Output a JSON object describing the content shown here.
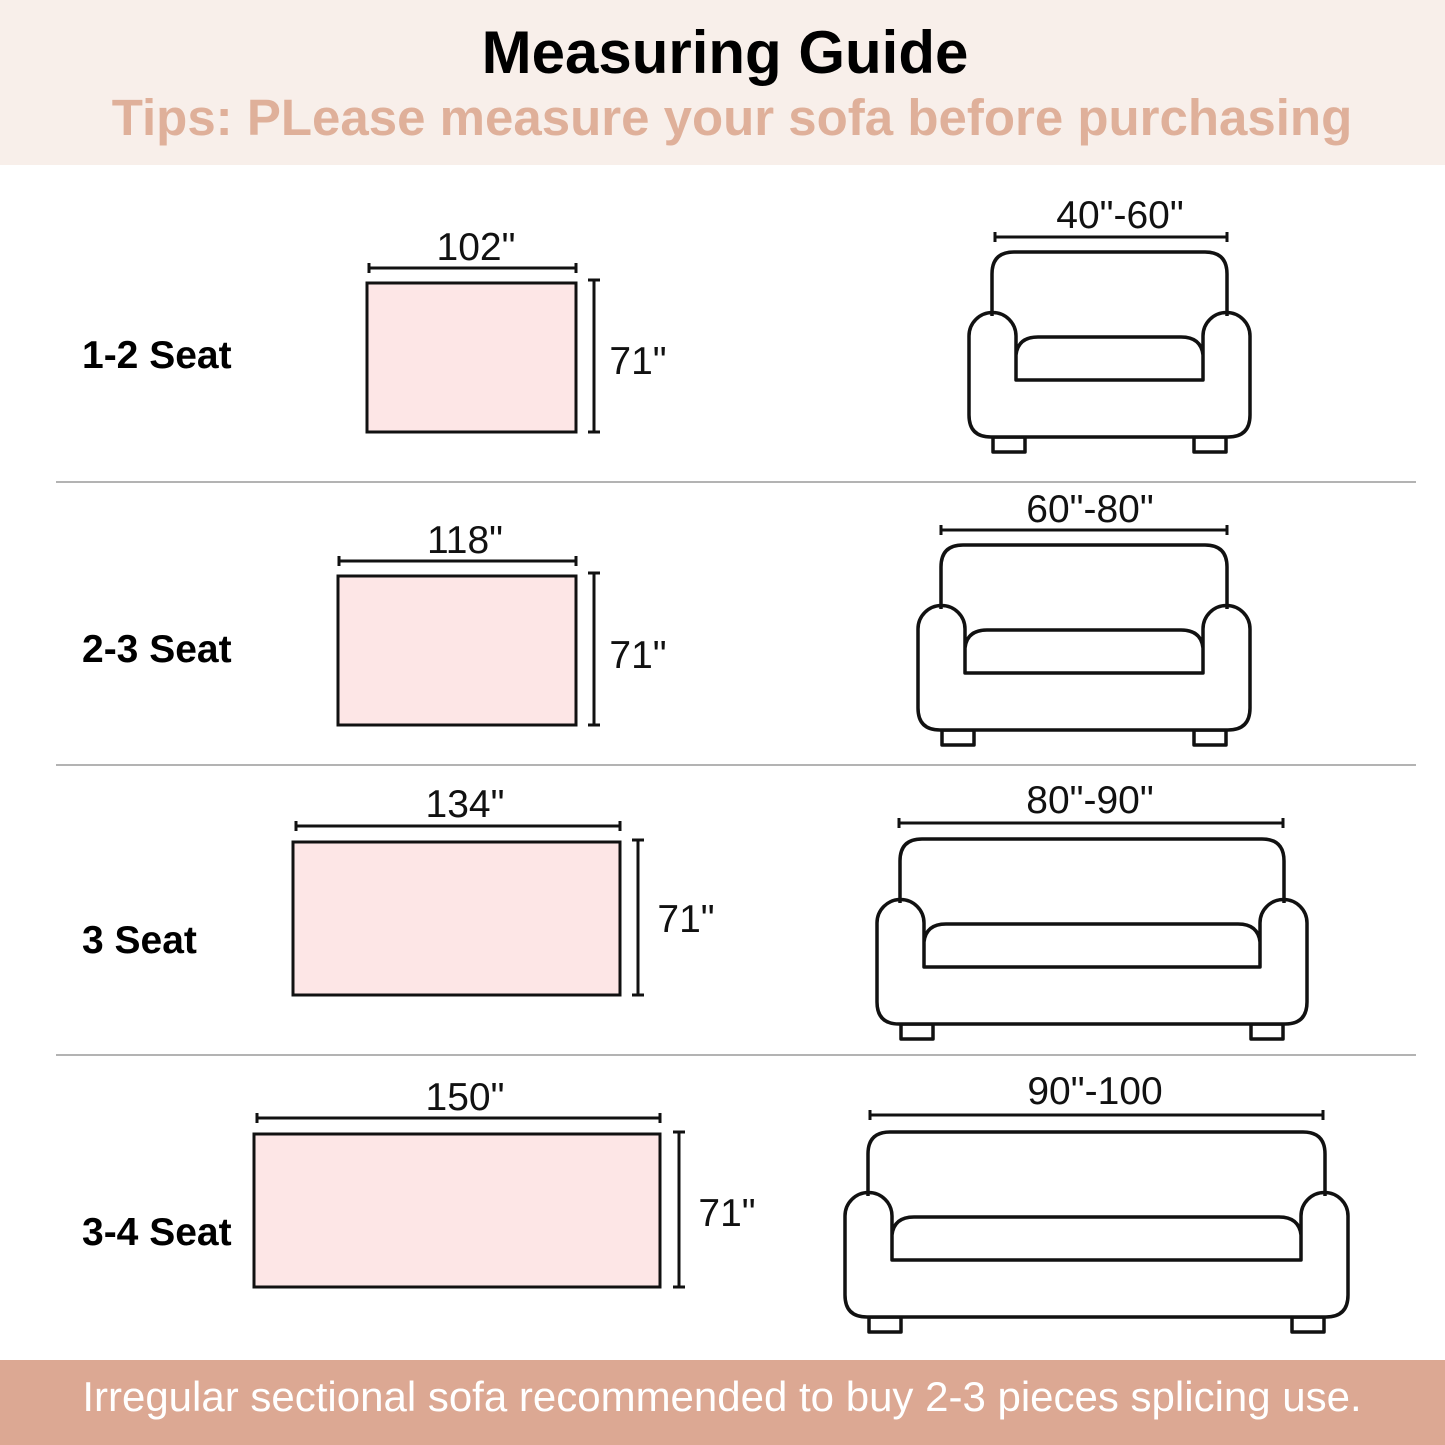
{
  "header": {
    "title": "Measuring Guide",
    "tips": "Tips: PLease measure your sofa before purchasing"
  },
  "rows": [
    {
      "seat": "1-2 Seat",
      "cover_width": "102\"",
      "cover_height": "71\"",
      "sofa_width": "40\"-60\""
    },
    {
      "seat": "2-3 Seat",
      "cover_width": "118\"",
      "cover_height": "71\"",
      "sofa_width": "60\"-80\""
    },
    {
      "seat": "3 Seat",
      "cover_width": "134\"",
      "cover_height": "71\"",
      "sofa_width": "80\"-90\""
    },
    {
      "seat": "3-4 Seat",
      "cover_width": "150\"",
      "cover_height": "71\"",
      "sofa_width": "90\"-100"
    }
  ],
  "footer": {
    "note": "Irregular sectional sofa recommended to buy 2-3 pieces splicing use."
  },
  "colors": {
    "header_bg": "#f8efea",
    "tips_text": "#dfb09a",
    "footer_bg": "#dca893",
    "cover_fill": "#fde6e6",
    "divider": "#9a9a9a"
  }
}
